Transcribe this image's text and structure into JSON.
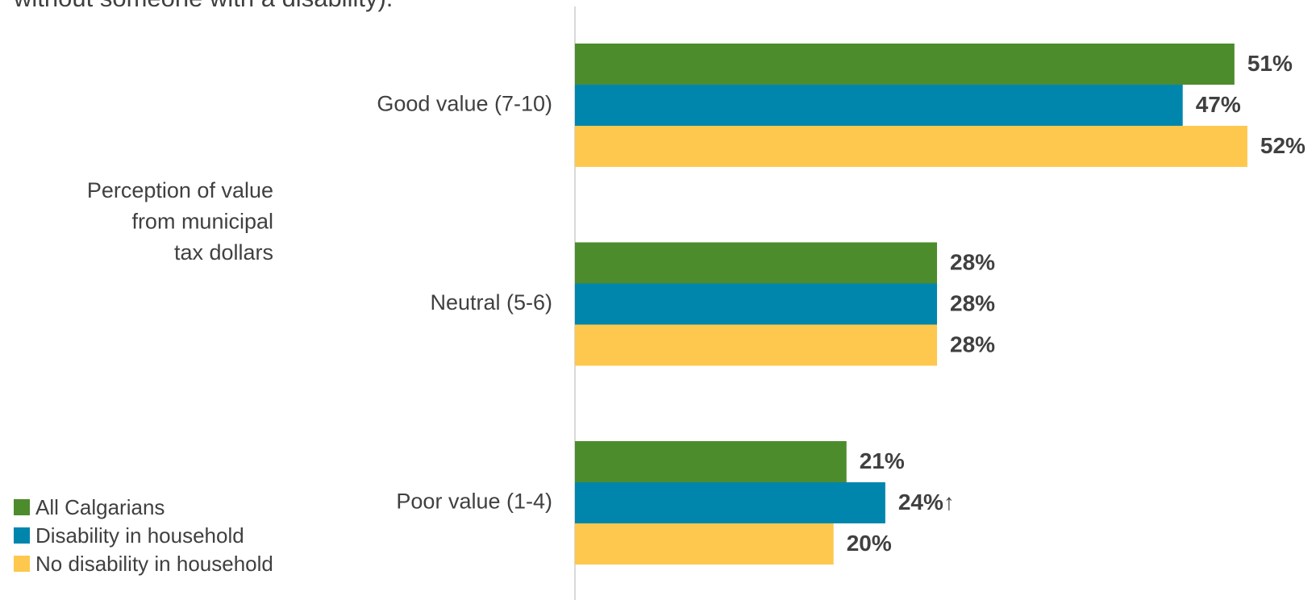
{
  "chart_data": {
    "type": "hbar",
    "subtitle": "without someone with a disability).",
    "y_label": [
      "Perception of value",
      "from municipal",
      "tax dollars"
    ],
    "categories": [
      "Good value (7-10)",
      "Neutral (5-6)",
      "Poor value (1-4)"
    ],
    "series": [
      {
        "name": "All Calgarians",
        "color": "#4d8c2c",
        "values": [
          51,
          28,
          21
        ],
        "value_labels": [
          "51%",
          "28%",
          "21%"
        ]
      },
      {
        "name": "Disability in household",
        "color": "#0086ad",
        "values": [
          47,
          28,
          24
        ],
        "value_labels": [
          "47%",
          "28%",
          "24%↑"
        ]
      },
      {
        "name": "No disability in household",
        "color": "#fec84e",
        "values": [
          52,
          28,
          20
        ],
        "value_labels": [
          "52%",
          "28%",
          "20%"
        ]
      }
    ],
    "xlim": [
      0,
      55
    ],
    "legend": "bottom-left"
  }
}
